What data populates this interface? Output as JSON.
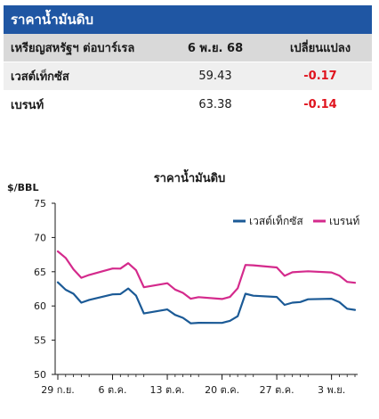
{
  "table": {
    "title": "ราคาน้ำมันดิบ",
    "header": {
      "name": "เหรียญสหรัฐฯ ต่อบาร์เรล",
      "price": "6 พ.ย. 68",
      "change": "เปลี่ยนแปลง"
    },
    "rows": [
      {
        "name": "เวสต์เท็กซัส",
        "price": "59.43",
        "change": "-0.17"
      },
      {
        "name": "เบรนท์",
        "price": "63.38",
        "change": "-0.14"
      }
    ],
    "negative_color": "#e0141e",
    "header_color": "#1f56a3"
  },
  "chart_data": {
    "type": "line",
    "title": "ราคาน้ำมันดิบ",
    "ylabel": "$/BBL",
    "xlabel": "",
    "ylim": [
      50,
      75
    ],
    "yticks": [
      50,
      55,
      60,
      65,
      70,
      75
    ],
    "xlim": [
      "2025-09-29",
      "2025-11-06"
    ],
    "xticks": [
      {
        "date": "2025-09-29",
        "label": "29 ก.ย."
      },
      {
        "date": "2025-10-06",
        "label": "6 ต.ค."
      },
      {
        "date": "2025-10-13",
        "label": "13 ต.ค."
      },
      {
        "date": "2025-10-20",
        "label": "20 ต.ค."
      },
      {
        "date": "2025-10-27",
        "label": "27 ต.ค."
      },
      {
        "date": "2025-11-03",
        "label": "3 พ.ย."
      }
    ],
    "grid": false,
    "legend_position": "top-right",
    "x": [
      "2025-09-29",
      "2025-09-30",
      "2025-10-01",
      "2025-10-02",
      "2025-10-03",
      "2025-10-06",
      "2025-10-07",
      "2025-10-08",
      "2025-10-09",
      "2025-10-10",
      "2025-10-13",
      "2025-10-14",
      "2025-10-15",
      "2025-10-16",
      "2025-10-17",
      "2025-10-20",
      "2025-10-21",
      "2025-10-22",
      "2025-10-23",
      "2025-10-24",
      "2025-10-27",
      "2025-10-28",
      "2025-10-29",
      "2025-10-30",
      "2025-10-31",
      "2025-11-03",
      "2025-11-04",
      "2025-11-05",
      "2025-11-06"
    ],
    "series": [
      {
        "name": "เวสต์เท็กซัส",
        "color": "#1b5a96",
        "values": [
          63.45,
          62.37,
          61.78,
          60.48,
          60.88,
          61.69,
          61.73,
          62.55,
          61.51,
          58.9,
          59.49,
          58.7,
          58.27,
          57.46,
          57.54,
          57.52,
          57.82,
          58.5,
          61.79,
          61.5,
          61.31,
          60.15,
          60.48,
          60.57,
          60.98,
          61.05,
          60.56,
          59.6,
          59.43
        ]
      },
      {
        "name": "เบรนท์",
        "color": "#d42a8c",
        "values": [
          67.97,
          67.02,
          65.35,
          64.11,
          64.53,
          65.47,
          65.45,
          66.25,
          65.22,
          62.73,
          63.32,
          62.39,
          61.91,
          61.06,
          61.29,
          61.01,
          61.32,
          62.59,
          65.99,
          65.94,
          65.62,
          64.4,
          64.92,
          65.0,
          65.07,
          64.89,
          64.44,
          63.52,
          63.38
        ]
      }
    ]
  }
}
